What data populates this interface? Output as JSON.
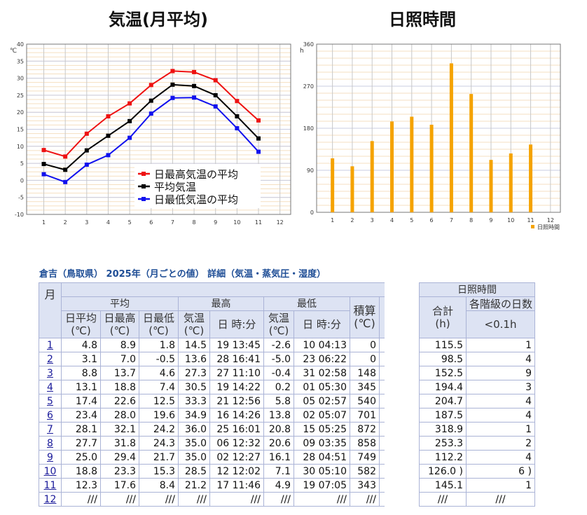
{
  "titles": {
    "temp": "気温(月平均)",
    "sun": "日照時間"
  },
  "chart_data": [
    {
      "type": "line",
      "ylabel": "℃",
      "ylim": [
        -10,
        40
      ],
      "yticks": [
        -10,
        -5,
        0,
        5,
        10,
        15,
        20,
        25,
        30,
        35,
        40
      ],
      "categories": [
        "1",
        "2",
        "3",
        "4",
        "5",
        "6",
        "7",
        "8",
        "9",
        "10",
        "11",
        "12"
      ],
      "grid": true,
      "legend": "bottom-center",
      "series": [
        {
          "name": "日最高気温の平均",
          "color": "#ee1111",
          "values": [
            8.9,
            7.0,
            13.7,
            18.8,
            22.6,
            28.0,
            32.1,
            31.8,
            29.4,
            23.3,
            17.6,
            null
          ]
        },
        {
          "name": "平均気温",
          "color": "#000000",
          "values": [
            4.8,
            3.1,
            8.8,
            13.1,
            17.4,
            23.4,
            28.1,
            27.7,
            25.0,
            18.8,
            12.3,
            null
          ]
        },
        {
          "name": "日最低気温の平均",
          "color": "#1111ee",
          "values": [
            1.8,
            -0.5,
            4.6,
            7.4,
            12.5,
            19.6,
            24.2,
            24.3,
            21.7,
            15.3,
            8.4,
            null
          ]
        }
      ]
    },
    {
      "type": "bar",
      "ylabel": "h",
      "ylim": [
        0,
        360
      ],
      "yticks": [
        0,
        90,
        180,
        270,
        360
      ],
      "categories": [
        "1",
        "2",
        "3",
        "4",
        "5",
        "6",
        "7",
        "8",
        "9",
        "10",
        "11",
        "12"
      ],
      "grid": true,
      "legend": "bottom-right",
      "series": [
        {
          "name": "日照時間",
          "color": "#f5a300",
          "values": [
            115.5,
            98.5,
            152.5,
            194.4,
            204.7,
            187.5,
            318.9,
            253.3,
            112.2,
            126.0,
            145.1,
            null
          ]
        }
      ]
    }
  ],
  "caption": "倉吉（鳥取県） 2025年（月ごとの値） 詳細（気温・蒸気圧・湿度）",
  "left_table": {
    "month_header": "月",
    "group_avg": "平均",
    "group_max": "最高",
    "group_min": "最低",
    "accum": "積算",
    "accum_unit": "(℃)",
    "sub": [
      "日平均",
      "日最高",
      "日最低",
      "気温",
      "日 時:分",
      "気温",
      "日 時:分"
    ],
    "unit": "(℃)",
    "rows": [
      [
        "1",
        "4.8",
        "8.9",
        "1.8",
        "14.5",
        "19 13:45",
        "-2.6",
        "10 04:13",
        "0"
      ],
      [
        "2",
        "3.1",
        "7.0",
        "-0.5",
        "13.6",
        "28 16:41",
        "-5.0",
        "23 06:22",
        "0"
      ],
      [
        "3",
        "8.8",
        "13.7",
        "4.6",
        "27.3",
        "27 11:10",
        "-0.4",
        "31 02:58",
        "148"
      ],
      [
        "4",
        "13.1",
        "18.8",
        "7.4",
        "30.5",
        "19 14:22",
        "0.2",
        "01 05:30",
        "345"
      ],
      [
        "5",
        "17.4",
        "22.6",
        "12.5",
        "33.3",
        "21 12:56",
        "5.8",
        "05 02:57",
        "540"
      ],
      [
        "6",
        "23.4",
        "28.0",
        "19.6",
        "34.9",
        "16 14:26",
        "13.8",
        "02 05:07",
        "701"
      ],
      [
        "7",
        "28.1",
        "32.1",
        "24.2",
        "36.0",
        "25 16:01",
        "20.8",
        "15 05:25",
        "872"
      ],
      [
        "8",
        "27.7",
        "31.8",
        "24.3",
        "35.0",
        "06 12:32",
        "20.6",
        "09 03:35",
        "858"
      ],
      [
        "9",
        "25.0",
        "29.4",
        "21.7",
        "35.0",
        "02 12:27",
        "16.1",
        "28 04:51",
        "749"
      ],
      [
        "10",
        "18.8",
        "23.3",
        "15.3",
        "28.5",
        "12 12:02",
        "7.1",
        "30 05:10",
        "582"
      ],
      [
        "11",
        "12.3",
        "17.6",
        "8.4",
        "21.2",
        "17 11:46",
        "4.9",
        "19 07:05",
        "343"
      ],
      [
        "12",
        "///",
        "///",
        "///",
        "///",
        "///",
        "///",
        "///",
        "///"
      ]
    ]
  },
  "right_table": {
    "group": "日照時間",
    "total": "合計",
    "total_unit": "(h)",
    "days": "各階級の日数",
    "days_sub": "<0.1h",
    "rows": [
      [
        "115.5",
        "1"
      ],
      [
        "98.5",
        "4"
      ],
      [
        "152.5",
        "9"
      ],
      [
        "194.4",
        "3"
      ],
      [
        "204.7",
        "4"
      ],
      [
        "187.5",
        "4"
      ],
      [
        "318.9",
        "1"
      ],
      [
        "253.3",
        "2"
      ],
      [
        "112.2",
        "4"
      ],
      [
        "126.0 )",
        "6 )"
      ],
      [
        "145.1",
        "1"
      ],
      [
        "///",
        "///"
      ]
    ]
  }
}
